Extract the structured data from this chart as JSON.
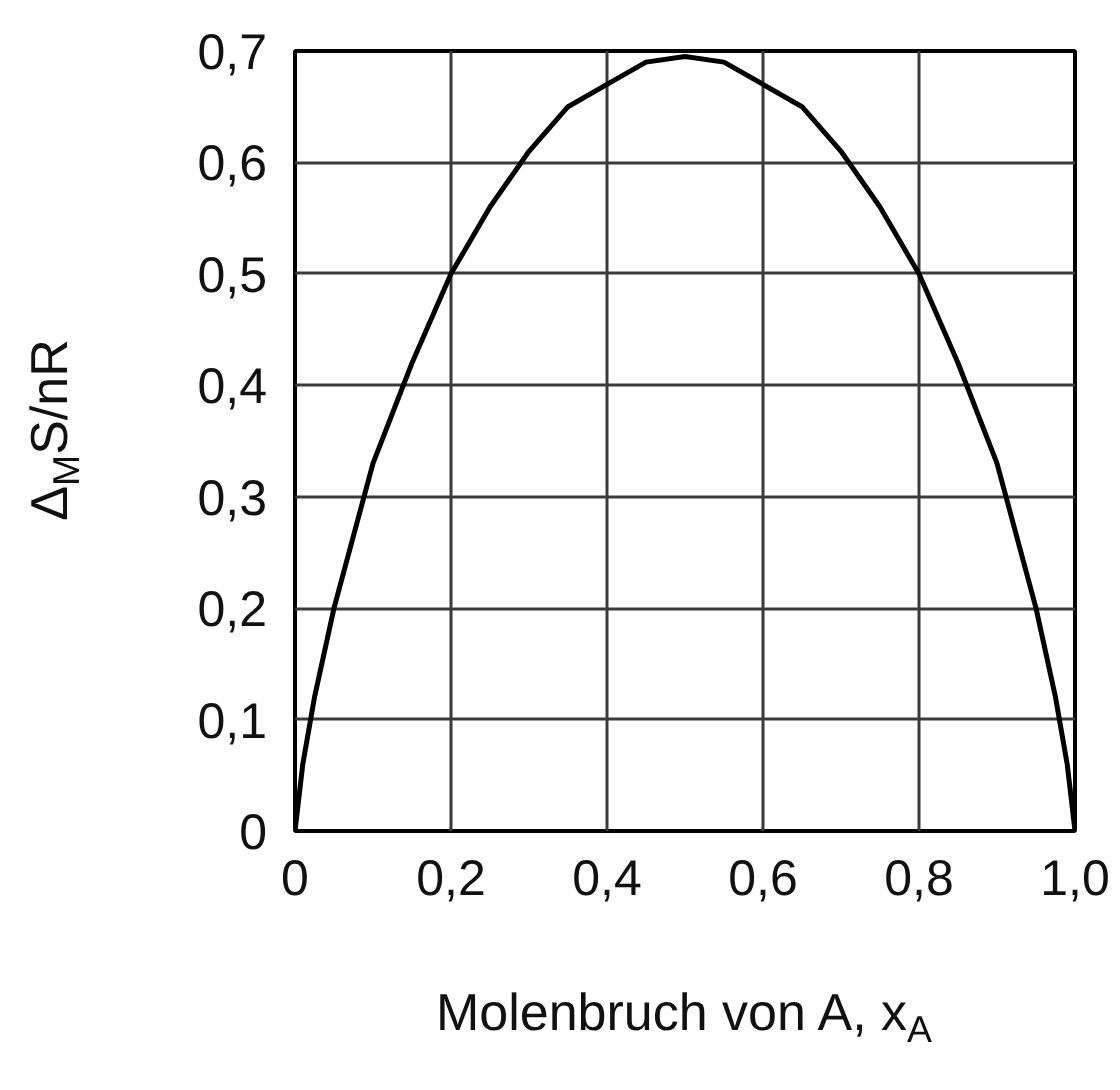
{
  "chart_data": {
    "type": "line",
    "xlabel": "Molenbruch von A, x$_{A}$",
    "ylabel": "Δ$_{M}$S/nR",
    "xlim": [
      0,
      1
    ],
    "ylim": [
      0,
      0.7
    ],
    "xticks": [
      0,
      {
        "value": 0.2,
        "label": "0,2"
      },
      {
        "value": 0.4,
        "label": "0,4"
      },
      {
        "value": 0.6,
        "label": "0,6"
      },
      {
        "value": 0.8,
        "label": "0,8"
      },
      {
        "value": 1,
        "label": "1,0"
      }
    ],
    "yticks": [
      0,
      {
        "value": 0.1,
        "label": "0,1"
      },
      {
        "value": 0.2,
        "label": "0,2"
      },
      {
        "value": 0.3,
        "label": "0,3"
      },
      {
        "value": 0.4,
        "label": "0,4"
      },
      {
        "value": 0.5,
        "label": "0,5"
      },
      {
        "value": 0.6,
        "label": "0,6"
      },
      {
        "value": 0.7,
        "label": "0,7"
      }
    ],
    "grid": true,
    "marker": "none",
    "line_style": "solid",
    "series": [
      {
        "color": "#000000",
        "x": [
          0,
          0.01,
          0.025,
          0.05,
          0.1,
          0.15,
          0.2,
          0.25,
          0.3,
          0.35,
          0.4,
          0.45,
          0.5,
          0.55,
          0.6,
          0.65,
          0.7,
          0.75,
          0.8,
          0.85,
          0.9,
          0.95,
          0.975,
          0.99,
          1
        ],
        "values": [
          0,
          0.06,
          0.12,
          0.2,
          0.33,
          0.42,
          0.5,
          0.56,
          0.61,
          0.65,
          0.67,
          0.69,
          0.695,
          0.69,
          0.67,
          0.65,
          0.61,
          0.56,
          0.5,
          0.42,
          0.33,
          0.2,
          0.12,
          0.06,
          0
        ]
      }
    ]
  }
}
